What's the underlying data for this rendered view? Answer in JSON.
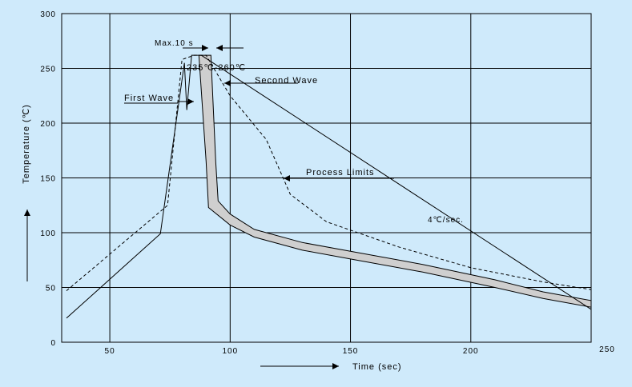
{
  "chart_data": {
    "type": "line",
    "title": "",
    "xlabel": "Time (sec)",
    "ylabel": "Temperature (℃)",
    "xlim": [
      30,
      250
    ],
    "ylim": [
      0,
      300
    ],
    "x_ticks": [
      50,
      100,
      150,
      200,
      250
    ],
    "y_ticks": [
      0,
      50,
      100,
      150,
      200,
      250,
      300
    ],
    "grid": true,
    "series": [
      {
        "name": "First Wave / Second Wave",
        "style": "solid",
        "color": "#000000",
        "points": [
          [
            32,
            22
          ],
          [
            71,
            99
          ],
          [
            81,
            255
          ],
          [
            82,
            212
          ],
          [
            84,
            262
          ],
          [
            86,
            262
          ],
          [
            88,
            262
          ],
          [
            250,
            30
          ]
        ]
      },
      {
        "name": "Process Limits",
        "style": "dashed",
        "color": "#000000",
        "points": [
          [
            32,
            47
          ],
          [
            74,
            125
          ],
          [
            80,
            258
          ],
          [
            85,
            262
          ],
          [
            90,
            262
          ],
          [
            100,
            225
          ],
          [
            115,
            185
          ],
          [
            125,
            135
          ],
          [
            140,
            110
          ],
          [
            170,
            87
          ],
          [
            200,
            68
          ],
          [
            230,
            55
          ],
          [
            250,
            48
          ]
        ]
      }
    ],
    "band": {
      "name": "Second Wave",
      "color": "#cfcfcf",
      "upper": [
        [
          89,
          262
        ],
        [
          92,
          262
        ],
        [
          94,
          165
        ],
        [
          95,
          129
        ],
        [
          100,
          117
        ],
        [
          110,
          103
        ],
        [
          130,
          91
        ],
        [
          150,
          83
        ],
        [
          180,
          71
        ],
        [
          210,
          57
        ],
        [
          230,
          46
        ],
        [
          250,
          38
        ]
      ],
      "lower": [
        [
          87,
          262
        ],
        [
          90,
          165
        ],
        [
          91,
          123
        ],
        [
          100,
          107
        ],
        [
          110,
          96
        ],
        [
          130,
          84
        ],
        [
          150,
          76
        ],
        [
          180,
          64
        ],
        [
          210,
          50
        ],
        [
          230,
          40
        ],
        [
          250,
          32
        ]
      ]
    },
    "annotations": {
      "max_time": "Max.10 s",
      "peak_range": "235℃-260℃",
      "first_wave": "First Wave",
      "second_wave": "Second Wave",
      "process_limits": "Process Limits",
      "cooling_rate": "4℃/sec."
    }
  }
}
